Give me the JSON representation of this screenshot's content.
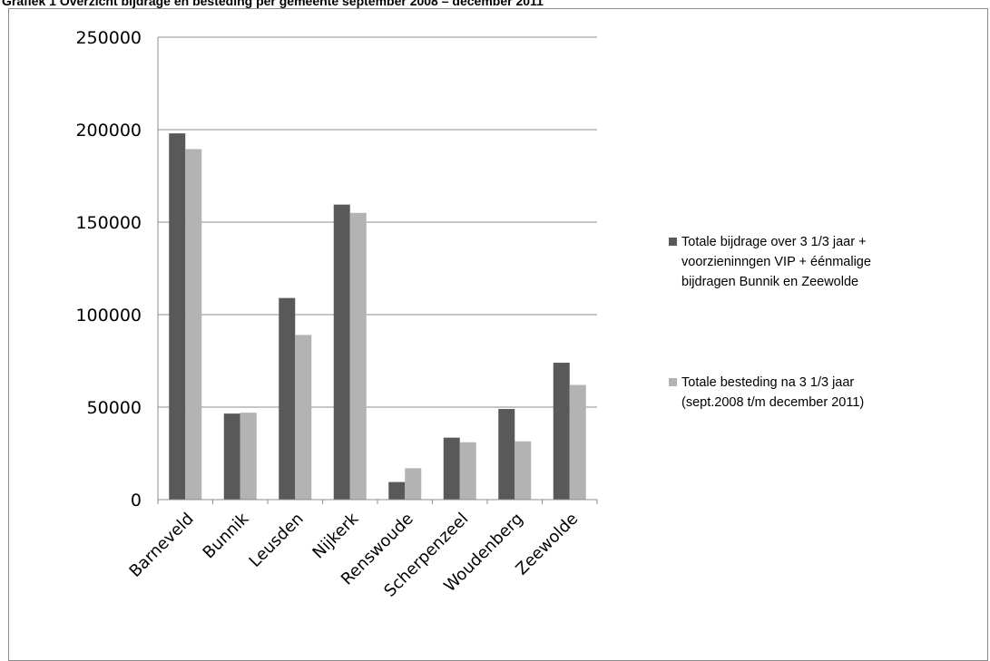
{
  "heading": "Grafiek 1 Overzicht bijdrage en besteding per gemeente september 2008 – december 2011",
  "chart_data": {
    "type": "bar",
    "categories": [
      "Barneveld",
      "Bunnik",
      "Leusden",
      "Nijkerk",
      "Renswoude",
      "Scherpenzeel",
      "Woudenberg",
      "Zeewolde"
    ],
    "series": [
      {
        "name": "Totale bijdrage over 3 1/3  jaar + voorzieninngen VIP + éénmalige bijdragen Bunnik en Zeewolde",
        "legend_lines": [
          "Totale bijdrage over 3 1/3  jaar +",
          "voorzieninngen VIP + éénmalige",
          "bijdragen Bunnik en Zeewolde"
        ],
        "color": "#595959",
        "values": [
          198000,
          46500,
          109000,
          159500,
          9500,
          33500,
          49000,
          74000
        ]
      },
      {
        "name": "Totale besteding na 3 1/3 jaar (sept.2008 t/m december 2011)",
        "legend_lines": [
          "Totale besteding na 3 1/3 jaar",
          "(sept.2008 t/m december 2011)"
        ],
        "color": "#b3b3b3",
        "values": [
          189500,
          47000,
          89000,
          155000,
          17000,
          31000,
          31500,
          62000
        ]
      }
    ],
    "ylim": [
      0,
      250000
    ],
    "yticks": [
      0,
      50000,
      100000,
      150000,
      200000,
      250000
    ],
    "grid": true,
    "legend_position": "right",
    "xlabel": "",
    "ylabel": ""
  }
}
